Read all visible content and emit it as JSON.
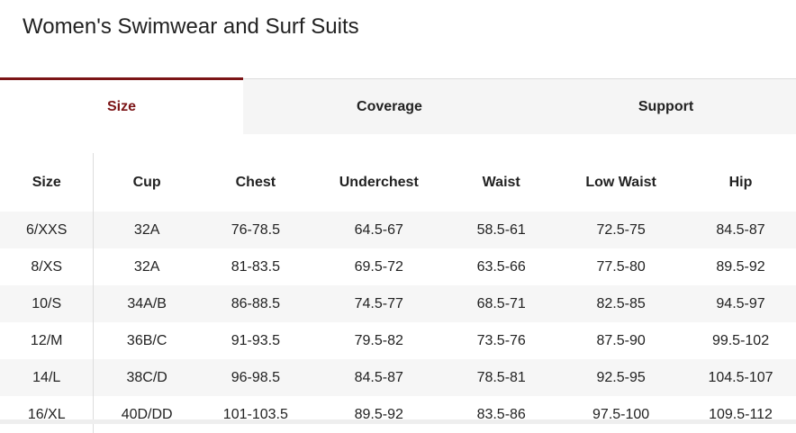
{
  "title": "Women's Swimwear and Surf Suits",
  "tabs": [
    {
      "label": "Size",
      "active": true
    },
    {
      "label": "Coverage"
    },
    {
      "label": "Support"
    }
  ],
  "accent": "#7b1416",
  "table": {
    "headers": [
      "Size",
      "Cup",
      "Chest",
      "Underchest",
      "Waist",
      "Low Waist",
      "Hip"
    ],
    "rows": [
      [
        "6/XXS",
        "32A",
        "76-78.5",
        "64.5-67",
        "58.5-61",
        "72.5-75",
        "84.5-87"
      ],
      [
        "8/XS",
        "32A",
        "81-83.5",
        "69.5-72",
        "63.5-66",
        "77.5-80",
        "89.5-92"
      ],
      [
        "10/S",
        "34A/B",
        "86-88.5",
        "74.5-77",
        "68.5-71",
        "82.5-85",
        "94.5-97"
      ],
      [
        "12/M",
        "36B/C",
        "91-93.5",
        "79.5-82",
        "73.5-76",
        "87.5-90",
        "99.5-102"
      ],
      [
        "14/L",
        "38C/D",
        "96-98.5",
        "84.5-87",
        "78.5-81",
        "92.5-95",
        "104.5-107"
      ],
      [
        "16/XL",
        "40D/DD",
        "101-103.5",
        "89.5-92",
        "83.5-86",
        "97.5-100",
        "109.5-112"
      ]
    ]
  }
}
